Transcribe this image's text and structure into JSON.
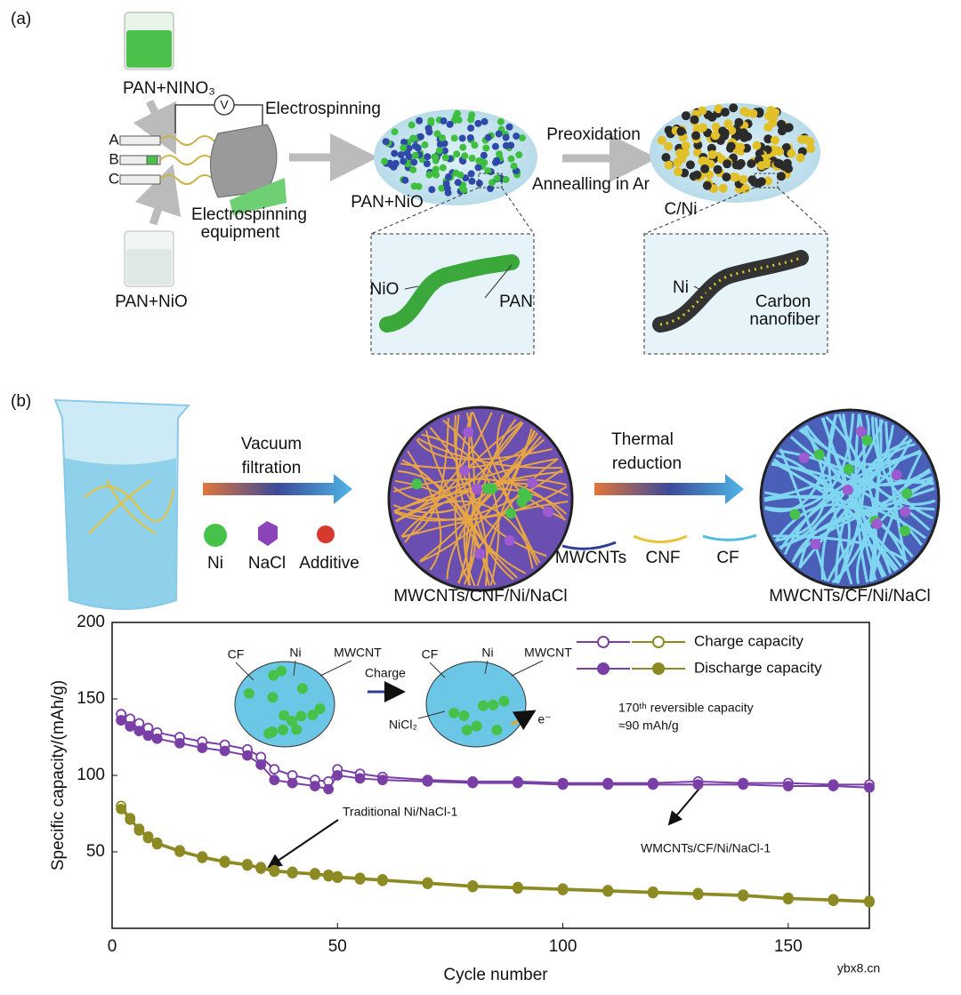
{
  "panel_a": {
    "label": "(a)",
    "beaker_top": "PAN+NINO₃",
    "syringes": [
      "A",
      "B",
      "C"
    ],
    "voltmeter": "V",
    "process": "Electrospinning",
    "equipment": [
      "Electrospinning",
      "equipment"
    ],
    "beaker_bottom": "PAN+NiO",
    "mat_1": "PAN+NiO",
    "step_top": "Preoxidation",
    "step_bottom": "Annealling in Ar",
    "mat_2": "C/Ni",
    "inset_1": [
      "NiO",
      "PAN"
    ],
    "inset_2": [
      "Ni",
      "Carbon",
      "nanofiber"
    ]
  },
  "panel_b": {
    "label": "(b)",
    "step_1": [
      "Vacuum",
      "filtration"
    ],
    "icons": [
      "Ni",
      "NaCl",
      "Additive"
    ],
    "product_1": "MWCNTs/CNF/Ni/NaCl",
    "step_2": [
      "Thermal",
      "reduction"
    ],
    "fibers": [
      "MWCNTs",
      "CNF",
      "CF"
    ],
    "product_2": "MWCNTs/CF/Ni/NaCl"
  },
  "chart_data": {
    "type": "line",
    "x_label": "Cycle number",
    "y_label": "Specific capacity/(mAh/g)",
    "x": [
      2,
      4,
      6,
      8,
      10,
      15,
      20,
      25,
      30,
      33,
      36,
      40,
      45,
      48,
      50,
      55,
      60,
      70,
      80,
      90,
      100,
      110,
      120,
      130,
      140,
      150,
      160,
      168
    ],
    "xlim": [
      0,
      168
    ],
    "ylim": [
      0,
      200
    ],
    "xticks": [
      0,
      50,
      100,
      150
    ],
    "yticks": [
      50,
      100,
      150,
      200
    ],
    "legend": [
      "Charge capacity",
      "Discharge capacity"
    ],
    "series": [
      {
        "name": "WMCNTs/CF/Ni/NaCl-1",
        "color": "#7a3fa6",
        "charge": [
          140,
          137,
          134,
          131,
          128,
          125,
          122,
          120,
          117,
          112,
          104,
          100,
          97,
          96,
          104,
          101,
          99,
          97,
          96,
          96,
          95,
          95,
          95,
          96,
          95,
          95,
          94,
          94
        ],
        "discharge": [
          136,
          132,
          129,
          126,
          124,
          121,
          118,
          116,
          113,
          107,
          97,
          95,
          93,
          91,
          100,
          98,
          97,
          96,
          95,
          95,
          94,
          94,
          94,
          94,
          94,
          93,
          93,
          92
        ]
      },
      {
        "name": "Traditional Ni/NaCl-1",
        "color": "#8c8a22",
        "charge": [
          80,
          72,
          65,
          60,
          56,
          51,
          47,
          44,
          42,
          40,
          38,
          37,
          36,
          35,
          34,
          33,
          32,
          30,
          28,
          27,
          26,
          25,
          24,
          23,
          22,
          20,
          19,
          18
        ],
        "discharge": [
          78,
          71,
          64,
          59,
          55,
          50,
          46,
          43,
          41,
          39,
          37,
          36,
          35,
          34,
          33,
          32,
          31,
          29,
          27,
          26,
          25,
          24,
          23,
          22,
          21,
          19,
          18,
          17
        ]
      }
    ],
    "inset": {
      "before": [
        "CF",
        "Ni",
        "MWCNT"
      ],
      "after": [
        "CF",
        "Ni",
        "MWCNT"
      ],
      "arrow": "Charge",
      "product": "NiCl₂",
      "electron": "e⁻"
    },
    "annotations": [
      "170ᵗʰ reversible capacity",
      "≈90 mAh/g"
    ]
  },
  "watermark": "ybx8.cn"
}
